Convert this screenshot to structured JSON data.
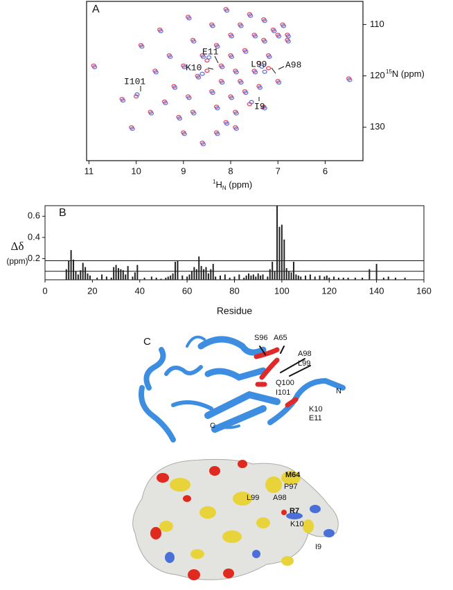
{
  "chart_data": [
    {
      "type": "scatter",
      "panel": "A",
      "xlabel": [
        "1",
        "H",
        "N",
        " (ppm)"
      ],
      "ylabel": [
        "15",
        "N (ppm)"
      ],
      "xlim": [
        11.05,
        5.2
      ],
      "ylim": [
        105.5,
        136.5
      ],
      "xticks": [
        11,
        10,
        9,
        8,
        7,
        6
      ],
      "yticks": [
        110,
        120,
        130
      ],
      "annotations": [
        "E11",
        "K10",
        "L99",
        "A98",
        "I101",
        "I9"
      ],
      "series": [
        {
          "color": "#e0405a",
          "x": [
            10.9,
            10.3,
            10.0,
            9.9,
            9.5,
            9.4,
            9.3,
            9.2,
            9.1,
            9.0,
            9.0,
            8.9,
            8.8,
            8.8,
            8.7,
            8.6,
            8.5,
            8.5,
            8.4,
            8.4,
            8.3,
            8.3,
            8.2,
            8.2,
            8.1,
            8.0,
            8.0,
            8.0,
            7.9,
            7.9,
            7.8,
            7.8,
            7.7,
            7.7,
            7.6,
            7.6,
            7.5,
            7.5,
            7.4,
            7.4,
            7.3,
            7.3,
            7.2,
            7.2,
            7.1,
            7.0,
            6.9,
            6.8,
            6.8,
            7.0,
            10.1,
            9.6,
            8.6,
            8.9,
            8.3,
            7.9,
            5.5,
            7.3,
            9.7,
            8.1
          ],
          "values": [
            118,
            124.5,
            124,
            114,
            111,
            125,
            116,
            122,
            128,
            118,
            131,
            124,
            113,
            127,
            120,
            116,
            119,
            117,
            110,
            123,
            126,
            114,
            118,
            121,
            129,
            112,
            116,
            124,
            119,
            127,
            110,
            121,
            115,
            123,
            108,
            125.5,
            112,
            119,
            117.5,
            122,
            109,
            113,
            118.5,
            116,
            111,
            112,
            110,
            112,
            113,
            121,
            130,
            119,
            133,
            108.5,
            131,
            130,
            120.5,
            126,
            127,
            107
          ]
        },
        {
          "color": "#5a6fd8",
          "x": [
            10.88,
            10.28,
            9.98,
            9.88,
            9.48,
            9.38,
            9.28,
            9.18,
            9.08,
            8.98,
            8.98,
            8.88,
            8.78,
            8.78,
            8.68,
            8.58,
            8.6,
            8.46,
            8.38,
            8.38,
            8.28,
            8.28,
            8.18,
            8.18,
            8.08,
            7.98,
            7.98,
            7.98,
            7.88,
            7.88,
            7.78,
            7.78,
            7.68,
            7.68,
            7.58,
            7.56,
            7.48,
            7.48,
            7.34,
            7.38,
            7.28,
            7.28,
            7.28,
            7.18,
            7.08,
            6.98,
            6.88,
            6.78,
            6.78,
            6.98,
            10.08,
            9.58,
            8.58,
            8.88,
            8.28,
            7.88,
            5.48,
            7.28,
            9.68,
            8.08
          ],
          "values": [
            118.3,
            124.8,
            123.6,
            114.3,
            111.3,
            125.3,
            116.3,
            122.3,
            128.3,
            118.3,
            131.3,
            124.3,
            113.3,
            127.3,
            120.3,
            116.3,
            119.6,
            116.4,
            110.3,
            123.3,
            126.3,
            114.3,
            118.3,
            121.3,
            129.3,
            112.3,
            116.3,
            124.3,
            119.3,
            127.3,
            110.3,
            121.3,
            115.3,
            123.3,
            108.3,
            125.1,
            112.3,
            119.3,
            118.2,
            122.3,
            109.3,
            113.3,
            119.2,
            116.3,
            111.3,
            112.3,
            110.3,
            112.3,
            113.3,
            121.3,
            130.3,
            119.3,
            133.3,
            108.8,
            131.3,
            130.3,
            120.8,
            126.3,
            127.3,
            107.3
          ]
        }
      ]
    },
    {
      "type": "bar",
      "panel": "B",
      "xlabel": "Residue",
      "ylabel": [
        "Δδ",
        "(ppm)"
      ],
      "color": "#222222",
      "xlim": [
        0,
        160
      ],
      "ylim": [
        0,
        0.7
      ],
      "xticks": [
        0,
        20,
        40,
        60,
        80,
        100,
        120,
        140,
        160
      ],
      "yticks": [
        0.2,
        0.4,
        0.6
      ],
      "hlines": [
        0.18,
        0.08
      ],
      "x": [
        9,
        10,
        11,
        12,
        13,
        14,
        15,
        16,
        17,
        18,
        19,
        22,
        24,
        26,
        28,
        29,
        30,
        31,
        32,
        33,
        34,
        35,
        37,
        38,
        39,
        42,
        45,
        47,
        49,
        51,
        52,
        53,
        54,
        55,
        56,
        58,
        60,
        61,
        62,
        63,
        64,
        65,
        66,
        67,
        68,
        69,
        70,
        71,
        72,
        74,
        76,
        78,
        80,
        82,
        84,
        85,
        86,
        87,
        88,
        89,
        90,
        91,
        92,
        94,
        95,
        96,
        97,
        98,
        99,
        100,
        101,
        102,
        103,
        104,
        105,
        106,
        107,
        108,
        110,
        112,
        114,
        116,
        118,
        119,
        120,
        122,
        124,
        126,
        128,
        131,
        134,
        137,
        140,
        143,
        145,
        148,
        152
      ],
      "values": [
        0.1,
        0.18,
        0.28,
        0.19,
        0.08,
        0.05,
        0.09,
        0.16,
        0.12,
        0.06,
        0.04,
        0.02,
        0.05,
        0.03,
        0.02,
        0.12,
        0.14,
        0.11,
        0.1,
        0.09,
        0.05,
        0.13,
        0.03,
        0.07,
        0.14,
        0.02,
        0.03,
        0.02,
        0.01,
        0.02,
        0.03,
        0.04,
        0.06,
        0.17,
        0.18,
        0.04,
        0.03,
        0.05,
        0.08,
        0.12,
        0.1,
        0.22,
        0.13,
        0.1,
        0.12,
        0.06,
        0.1,
        0.15,
        0.03,
        0.04,
        0.05,
        0.02,
        0.03,
        0.05,
        0.02,
        0.04,
        0.06,
        0.04,
        0.05,
        0.03,
        0.06,
        0.04,
        0.05,
        0.03,
        0.1,
        0.17,
        0.08,
        0.7,
        0.5,
        0.52,
        0.38,
        0.11,
        0.08,
        0.07,
        0.17,
        0.05,
        0.04,
        0.03,
        0.04,
        0.05,
        0.03,
        0.04,
        0.03,
        0.04,
        0.02,
        0.03,
        0.02,
        0.02,
        0.02,
        0.02,
        0.02,
        0.1,
        0.15,
        0.02,
        0.03,
        0.02,
        0.02
      ]
    }
  ],
  "figure_c": {
    "panel": "C",
    "cartoon_labels": [
      "S96",
      "A65",
      "A98",
      "L99",
      "Q100",
      "I101",
      "N",
      "K10",
      "E11",
      "C"
    ],
    "surface_labels": [
      "M64",
      "P97",
      "L99",
      "A98",
      "R7",
      "K10",
      "I9"
    ]
  }
}
